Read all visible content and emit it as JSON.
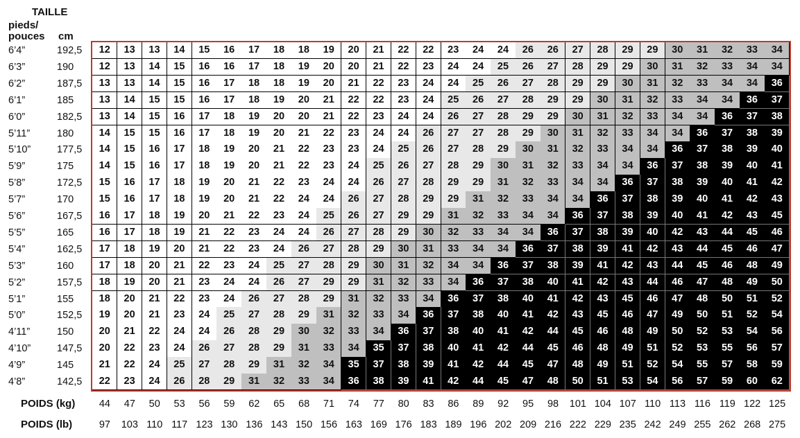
{
  "header": {
    "taille": "TAILLE",
    "pieds": "pieds/",
    "pouces": "pouces",
    "cm": "cm"
  },
  "footer": {
    "poids_kg_label": "POIDS (kg)",
    "poids_lb_label": "POIDS (lb)"
  },
  "colors": {
    "border": "#c0392b",
    "white": "#ffffff",
    "light": "#e8e8e8",
    "mid": "#bfbfbf",
    "black": "#000000"
  },
  "chart_data": {
    "type": "heatmap",
    "x": [
      44,
      47,
      50,
      53,
      56,
      59,
      62,
      65,
      68,
      71,
      74,
      77,
      80,
      83,
      86,
      89,
      92,
      95,
      98,
      101,
      104,
      107,
      110,
      113,
      116,
      119,
      122,
      125
    ],
    "x_lb": [
      97,
      103,
      110,
      117,
      123,
      130,
      136,
      143,
      150,
      156,
      163,
      169,
      176,
      183,
      189,
      196,
      202,
      209,
      216,
      222,
      229,
      235,
      242,
      249,
      255,
      262,
      268,
      275
    ],
    "y_ft": [
      "6’4”",
      "6’3”",
      "6’2”",
      "6’1”",
      "6’0”",
      "5’11”",
      "5’10”",
      "5’9”",
      "5’8”",
      "5’7”",
      "5’6”",
      "5’5”",
      "5’4”",
      "5’3”",
      "5’2”",
      "5’1”",
      "5’0”",
      "4’11”",
      "4’10”",
      "4’9”",
      "4’8”"
    ],
    "y_cm": [
      "192,5",
      "190",
      "187,5",
      "185",
      "182,5",
      "180",
      "177,5",
      "175",
      "172,5",
      "170",
      "167,5",
      "165",
      "162,5",
      "160",
      "157,5",
      "155",
      "152,5",
      "150",
      "147,5",
      "145",
      "142,5"
    ],
    "values": [
      [
        12,
        13,
        13,
        14,
        15,
        16,
        17,
        18,
        18,
        19,
        20,
        21,
        22,
        22,
        23,
        24,
        24,
        26,
        26,
        27,
        28,
        29,
        29,
        30,
        31,
        32,
        33,
        34
      ],
      [
        12,
        13,
        14,
        15,
        16,
        16,
        17,
        18,
        19,
        20,
        20,
        21,
        22,
        23,
        24,
        24,
        25,
        26,
        27,
        28,
        29,
        29,
        30,
        31,
        32,
        33,
        34,
        34
      ],
      [
        13,
        13,
        14,
        15,
        16,
        17,
        18,
        18,
        19,
        20,
        21,
        22,
        23,
        24,
        24,
        25,
        26,
        27,
        28,
        29,
        29,
        30,
        31,
        32,
        33,
        34,
        34,
        36
      ],
      [
        13,
        14,
        15,
        15,
        16,
        17,
        18,
        19,
        20,
        21,
        22,
        22,
        23,
        24,
        25,
        26,
        27,
        28,
        29,
        29,
        30,
        31,
        32,
        33,
        34,
        34,
        36,
        37
      ],
      [
        13,
        14,
        15,
        16,
        17,
        18,
        19,
        20,
        20,
        21,
        22,
        23,
        24,
        24,
        26,
        27,
        28,
        29,
        29,
        30,
        31,
        32,
        33,
        34,
        34,
        36,
        37,
        38
      ],
      [
        14,
        15,
        15,
        16,
        17,
        18,
        19,
        20,
        21,
        22,
        23,
        24,
        24,
        26,
        27,
        27,
        28,
        29,
        30,
        31,
        32,
        33,
        34,
        34,
        36,
        37,
        38,
        39
      ],
      [
        14,
        15,
        16,
        17,
        18,
        19,
        20,
        21,
        22,
        23,
        23,
        24,
        25,
        26,
        27,
        28,
        29,
        30,
        31,
        32,
        33,
        34,
        34,
        36,
        37,
        38,
        39,
        40
      ],
      [
        14,
        15,
        16,
        17,
        18,
        19,
        20,
        21,
        22,
        23,
        24,
        25,
        26,
        27,
        28,
        29,
        30,
        31,
        32,
        33,
        34,
        34,
        36,
        37,
        38,
        39,
        40,
        41
      ],
      [
        15,
        16,
        17,
        18,
        19,
        20,
        21,
        22,
        23,
        24,
        24,
        26,
        27,
        28,
        29,
        29,
        31,
        32,
        33,
        34,
        34,
        36,
        37,
        38,
        39,
        40,
        41,
        42
      ],
      [
        15,
        16,
        17,
        18,
        19,
        20,
        21,
        22,
        24,
        24,
        26,
        27,
        28,
        29,
        29,
        31,
        32,
        33,
        34,
        34,
        36,
        37,
        38,
        39,
        40,
        41,
        42,
        43
      ],
      [
        16,
        17,
        18,
        19,
        20,
        21,
        22,
        23,
        24,
        25,
        26,
        27,
        29,
        29,
        31,
        32,
        33,
        34,
        34,
        36,
        37,
        38,
        39,
        40,
        41,
        42,
        43,
        45
      ],
      [
        16,
        17,
        18,
        19,
        21,
        22,
        23,
        24,
        24,
        26,
        27,
        28,
        29,
        30,
        32,
        33,
        34,
        34,
        36,
        37,
        38,
        39,
        40,
        42,
        43,
        44,
        45,
        46
      ],
      [
        17,
        18,
        19,
        20,
        21,
        22,
        23,
        24,
        26,
        27,
        28,
        29,
        30,
        31,
        33,
        34,
        34,
        36,
        37,
        38,
        39,
        41,
        42,
        43,
        44,
        45,
        46,
        47
      ],
      [
        17,
        18,
        20,
        21,
        22,
        23,
        24,
        25,
        27,
        28,
        29,
        30,
        31,
        32,
        34,
        34,
        36,
        37,
        38,
        39,
        41,
        42,
        43,
        44,
        45,
        46,
        48,
        49
      ],
      [
        18,
        19,
        20,
        21,
        23,
        24,
        24,
        26,
        27,
        29,
        29,
        31,
        32,
        33,
        34,
        36,
        37,
        38,
        40,
        41,
        42,
        43,
        44,
        46,
        47,
        48,
        49,
        50
      ],
      [
        18,
        20,
        21,
        22,
        23,
        24,
        26,
        27,
        28,
        29,
        31,
        32,
        33,
        34,
        36,
        37,
        38,
        40,
        41,
        42,
        43,
        45,
        46,
        47,
        48,
        50,
        51,
        52
      ],
      [
        19,
        20,
        21,
        23,
        24,
        25,
        27,
        28,
        29,
        31,
        32,
        33,
        34,
        36,
        37,
        38,
        40,
        41,
        42,
        43,
        45,
        46,
        47,
        49,
        50,
        51,
        52,
        54
      ],
      [
        20,
        21,
        22,
        24,
        24,
        26,
        28,
        29,
        30,
        32,
        33,
        34,
        36,
        37,
        38,
        40,
        41,
        42,
        44,
        45,
        46,
        48,
        49,
        50,
        52,
        53,
        54,
        56
      ],
      [
        20,
        22,
        23,
        24,
        26,
        27,
        28,
        29,
        31,
        33,
        34,
        35,
        37,
        38,
        40,
        41,
        42,
        44,
        45,
        46,
        48,
        49,
        51,
        52,
        53,
        55,
        56,
        57
      ],
      [
        21,
        22,
        24,
        25,
        27,
        28,
        29,
        31,
        32,
        34,
        35,
        37,
        38,
        39,
        41,
        42,
        44,
        45,
        47,
        48,
        49,
        51,
        52,
        54,
        55,
        57,
        58,
        59
      ],
      [
        22,
        23,
        24,
        26,
        28,
        29,
        31,
        32,
        33,
        34,
        36,
        38,
        39,
        41,
        42,
        44,
        45,
        47,
        48,
        50,
        51,
        53,
        54,
        56,
        57,
        59,
        60,
        62
      ]
    ]
  }
}
